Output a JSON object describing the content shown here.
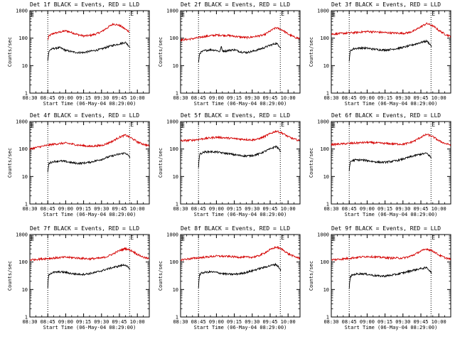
{
  "figure": {
    "background": "#ffffff",
    "events_color": "#000000",
    "lld_color": "#d40000",
    "panels_count": 9
  },
  "chart_data": [
    {
      "type": "line",
      "title": "Det 1f BLACK = Events, RED = LLD",
      "xlabel": "Start Time (06-May-04 08:29:00)",
      "ylabel": "Counts/sec",
      "x_ticks": [
        "08:30",
        "08:45",
        "09:00",
        "09:15",
        "09:30",
        "09:45",
        "10:00"
      ],
      "y_ticks": [
        "1",
        "10",
        "100",
        "1000"
      ],
      "yscale": "log",
      "ylim": [
        1,
        1000
      ],
      "xlim_minutes": [
        0,
        100
      ],
      "markers": [
        {
          "label": "E",
          "x_min": 0
        },
        {
          "label": "E",
          "x_min": 0
        },
        {
          "label": "E",
          "x_min": 83.5
        }
      ],
      "dotted_lines_min": [
        15,
        83.5
      ],
      "series": [
        {
          "x_min": [
            15,
            16,
            20,
            25,
            30,
            35,
            40,
            45,
            50,
            55,
            60,
            65,
            70,
            75,
            80,
            83.5
          ],
          "values": [
            85,
            120,
            150,
            165,
            185,
            160,
            135,
            120,
            125,
            140,
            170,
            240,
            330,
            290,
            210,
            170
          ]
        },
        {
          "x_min": [
            15,
            15.5,
            16,
            17,
            20,
            25,
            30,
            35,
            40,
            45,
            50,
            55,
            60,
            65,
            70,
            75,
            80,
            84
          ],
          "values": [
            15,
            23,
            32,
            38,
            42,
            45,
            36,
            32,
            30,
            30,
            33,
            36,
            40,
            48,
            55,
            62,
            70,
            45
          ]
        }
      ]
    },
    {
      "type": "line",
      "title": "Det 2f BLACK = Events, RED = LLD",
      "xlabel": "Start Time (06-May-04 08:29:00)",
      "ylabel": "Counts/sec",
      "x_ticks": [
        "08:30",
        "08:45",
        "09:00",
        "09:15",
        "09:30",
        "09:45",
        "10:00"
      ],
      "y_ticks": [
        "1",
        "10",
        "100",
        "1000"
      ],
      "yscale": "log",
      "ylim": [
        1,
        1000
      ],
      "xlim_minutes": [
        0,
        100
      ],
      "markers": [
        {
          "label": "E",
          "x_min": 0
        },
        {
          "label": "E",
          "x_min": 0
        },
        {
          "label": "E",
          "x_min": 83.5
        }
      ],
      "dotted_lines_min": [
        15,
        83.5
      ],
      "series": [
        {
          "x_min": [
            0,
            10,
            20,
            30,
            40,
            50,
            55,
            60,
            70,
            75,
            80,
            85,
            90,
            95,
            100
          ],
          "values": [
            85,
            95,
            115,
            130,
            125,
            110,
            105,
            110,
            130,
            180,
            240,
            200,
            140,
            110,
            95
          ]
        },
        {
          "x_min": [
            15,
            15.5,
            16,
            18,
            20,
            25,
            30,
            33,
            34,
            35,
            38,
            40,
            45,
            50,
            55,
            60,
            65,
            70,
            75,
            80,
            84
          ],
          "values": [
            12,
            20,
            28,
            32,
            35,
            38,
            36,
            32,
            50,
            35,
            34,
            36,
            38,
            32,
            30,
            33,
            38,
            45,
            55,
            65,
            45
          ]
        }
      ]
    },
    {
      "type": "line",
      "title": "Det 3f BLACK = Events, RED = LLD",
      "xlabel": "Start Time (06-May-04 08:29:00)",
      "ylabel": "Counts/sec",
      "x_ticks": [
        "08:30",
        "08:45",
        "09:00",
        "09:15",
        "09:30",
        "09:45",
        "10:00"
      ],
      "y_ticks": [
        "1",
        "10",
        "100",
        "1000"
      ],
      "yscale": "log",
      "ylim": [
        1,
        1000
      ],
      "xlim_minutes": [
        0,
        100
      ],
      "markers": [
        {
          "label": "E",
          "x_min": 0
        },
        {
          "label": "E",
          "x_min": 0
        },
        {
          "label": "E",
          "x_min": 83.5
        }
      ],
      "dotted_lines_min": [
        15,
        83.5
      ],
      "series": [
        {
          "x_min": [
            0,
            10,
            20,
            30,
            40,
            50,
            60,
            65,
            70,
            75,
            80,
            85,
            90,
            95,
            100
          ],
          "values": [
            140,
            150,
            160,
            175,
            165,
            155,
            150,
            160,
            190,
            260,
            340,
            280,
            190,
            140,
            115
          ]
        },
        {
          "x_min": [
            15,
            15.5,
            16,
            18,
            20,
            25,
            30,
            35,
            40,
            45,
            50,
            55,
            60,
            65,
            70,
            75,
            80,
            84
          ],
          "values": [
            15,
            25,
            35,
            40,
            42,
            44,
            43,
            40,
            38,
            37,
            39,
            42,
            46,
            52,
            60,
            70,
            78,
            50
          ]
        }
      ]
    },
    {
      "type": "line",
      "title": "Det 4f BLACK = Events, RED = LLD",
      "xlabel": "Start Time (06-May-04 08:29:00)",
      "ylabel": "Counts/sec",
      "x_ticks": [
        "08:30",
        "08:45",
        "09:00",
        "09:15",
        "09:30",
        "09:45",
        "10:00"
      ],
      "y_ticks": [
        "1",
        "10",
        "100",
        "1000"
      ],
      "yscale": "log",
      "ylim": [
        1,
        1000
      ],
      "xlim_minutes": [
        0,
        100
      ],
      "markers": [
        {
          "label": "E",
          "x_min": 0
        },
        {
          "label": "E",
          "x_min": 0
        },
        {
          "label": "E",
          "x_min": 83.5
        }
      ],
      "dotted_lines_min": [
        15,
        83.5
      ],
      "series": [
        {
          "x_min": [
            0,
            10,
            20,
            30,
            40,
            50,
            60,
            65,
            70,
            75,
            80,
            85,
            90,
            95,
            100
          ],
          "values": [
            100,
            125,
            150,
            165,
            140,
            125,
            135,
            160,
            200,
            270,
            320,
            250,
            180,
            150,
            130
          ]
        },
        {
          "x_min": [
            15,
            15.5,
            16,
            18,
            20,
            25,
            30,
            35,
            40,
            45,
            50,
            55,
            60,
            65,
            70,
            75,
            80,
            84
          ],
          "values": [
            14,
            22,
            30,
            33,
            35,
            37,
            35,
            32,
            30,
            31,
            33,
            37,
            42,
            50,
            58,
            65,
            72,
            48
          ]
        }
      ]
    },
    {
      "type": "line",
      "title": "Det 5f BLACK = Events, RED = LLD",
      "xlabel": "Start Time (06-May-04 08:29:00)",
      "ylabel": "Counts/sec",
      "x_ticks": [
        "08:30",
        "08:45",
        "09:00",
        "09:15",
        "09:30",
        "09:45",
        "10:00"
      ],
      "y_ticks": [
        "1",
        "10",
        "100",
        "1000"
      ],
      "yscale": "log",
      "ylim": [
        1,
        1000
      ],
      "xlim_minutes": [
        0,
        100
      ],
      "markers": [
        {
          "label": "E",
          "x_min": 0
        },
        {
          "label": "E",
          "x_min": 0
        },
        {
          "label": "E",
          "x_min": 83.5
        }
      ],
      "dotted_lines_min": [
        15,
        83.5
      ],
      "series": [
        {
          "x_min": [
            0,
            10,
            20,
            30,
            40,
            50,
            60,
            65,
            70,
            75,
            80,
            85,
            90,
            95,
            100
          ],
          "values": [
            200,
            210,
            240,
            270,
            250,
            230,
            215,
            230,
            280,
            360,
            450,
            380,
            280,
            230,
            200
          ]
        },
        {
          "x_min": [
            15,
            15.5,
            16,
            18,
            20,
            25,
            30,
            35,
            40,
            45,
            50,
            55,
            60,
            65,
            70,
            75,
            80,
            84
          ],
          "values": [
            22,
            45,
            65,
            72,
            78,
            80,
            78,
            72,
            68,
            62,
            58,
            56,
            58,
            65,
            80,
            100,
            125,
            80
          ]
        }
      ]
    },
    {
      "type": "line",
      "title": "Det 6f BLACK = Events, RED = LLD",
      "xlabel": "Start Time (06-May-04 08:29:00)",
      "ylabel": "Counts/sec",
      "x_ticks": [
        "08:30",
        "08:45",
        "09:00",
        "09:15",
        "09:30",
        "09:45",
        "10:00"
      ],
      "y_ticks": [
        "1",
        "10",
        "100",
        "1000"
      ],
      "yscale": "log",
      "ylim": [
        1,
        1000
      ],
      "xlim_minutes": [
        0,
        100
      ],
      "markers": [
        {
          "label": "E",
          "x_min": 0
        },
        {
          "label": "E",
          "x_min": 0
        },
        {
          "label": "E",
          "x_min": 83.5
        }
      ],
      "dotted_lines_min": [
        15,
        83.5
      ],
      "series": [
        {
          "x_min": [
            0,
            10,
            20,
            30,
            40,
            50,
            60,
            65,
            70,
            75,
            80,
            85,
            90,
            95,
            100
          ],
          "values": [
            145,
            155,
            165,
            175,
            165,
            155,
            150,
            165,
            200,
            270,
            340,
            280,
            200,
            160,
            140
          ]
        },
        {
          "x_min": [
            15,
            15.5,
            16,
            18,
            20,
            25,
            30,
            35,
            40,
            45,
            50,
            55,
            60,
            65,
            70,
            75,
            80,
            84
          ],
          "values": [
            15,
            25,
            35,
            38,
            40,
            40,
            38,
            35,
            33,
            33,
            35,
            38,
            43,
            50,
            58,
            65,
            70,
            45
          ]
        }
      ]
    },
    {
      "type": "line",
      "title": "Det 7f BLACK = Events, RED = LLD",
      "xlabel": "Start Time (06-May-04 08:29:00)",
      "ylabel": "Counts/sec",
      "x_ticks": [
        "08:30",
        "08:45",
        "09:00",
        "09:15",
        "09:30",
        "09:45",
        "10:00"
      ],
      "y_ticks": [
        "1",
        "10",
        "100",
        "1000"
      ],
      "yscale": "log",
      "ylim": [
        1,
        1000
      ],
      "xlim_minutes": [
        0,
        100
      ],
      "markers": [
        {
          "label": "E",
          "x_min": 0
        },
        {
          "label": "E",
          "x_min": 0
        },
        {
          "label": "E",
          "x_min": 83.5
        }
      ],
      "dotted_lines_min": [
        15,
        83.5
      ],
      "series": [
        {
          "x_min": [
            0,
            10,
            20,
            30,
            40,
            50,
            60,
            65,
            70,
            75,
            80,
            85,
            90,
            95,
            100
          ],
          "values": [
            120,
            130,
            140,
            150,
            140,
            130,
            140,
            160,
            200,
            260,
            310,
            260,
            190,
            150,
            130
          ]
        },
        {
          "x_min": [
            15,
            15.5,
            16,
            18,
            20,
            25,
            30,
            35,
            40,
            45,
            50,
            55,
            60,
            65,
            70,
            75,
            80,
            84
          ],
          "values": [
            12,
            25,
            36,
            40,
            42,
            44,
            42,
            38,
            36,
            36,
            38,
            42,
            48,
            56,
            64,
            72,
            80,
            50
          ]
        }
      ]
    },
    {
      "type": "line",
      "title": "Det 8f BLACK = Events, RED = LLD",
      "xlabel": "Start Time (06-May-04 08:29:00)",
      "ylabel": "Counts/sec",
      "x_ticks": [
        "08:30",
        "08:45",
        "09:00",
        "09:15",
        "09:30",
        "09:45",
        "10:00"
      ],
      "y_ticks": [
        "1",
        "10",
        "100",
        "1000"
      ],
      "yscale": "log",
      "ylim": [
        1,
        1000
      ],
      "xlim_minutes": [
        0,
        100
      ],
      "markers": [
        {
          "label": "E",
          "x_min": 0
        },
        {
          "label": "E",
          "x_min": 0
        },
        {
          "label": "E",
          "x_min": 83.5
        }
      ],
      "dotted_lines_min": [
        15,
        83.5
      ],
      "series": [
        {
          "x_min": [
            0,
            10,
            20,
            30,
            40,
            50,
            60,
            65,
            70,
            75,
            80,
            85,
            90,
            95,
            100
          ],
          "values": [
            120,
            135,
            150,
            165,
            160,
            150,
            150,
            165,
            210,
            280,
            350,
            290,
            200,
            160,
            135
          ]
        },
        {
          "x_min": [
            15,
            15.5,
            16,
            18,
            20,
            25,
            30,
            35,
            40,
            45,
            50,
            55,
            60,
            65,
            70,
            75,
            80,
            84
          ],
          "values": [
            12,
            25,
            35,
            40,
            42,
            44,
            42,
            38,
            36,
            36,
            38,
            42,
            48,
            56,
            64,
            74,
            82,
            50
          ]
        }
      ]
    },
    {
      "type": "line",
      "title": "Det 9f BLACK = Events, RED = LLD",
      "xlabel": "Start Time (06-May-04 08:29:00)",
      "ylabel": "Counts/sec",
      "x_ticks": [
        "08:30",
        "08:45",
        "09:00",
        "09:15",
        "09:30",
        "09:45",
        "10:00"
      ],
      "y_ticks": [
        "1",
        "10",
        "100",
        "1000"
      ],
      "yscale": "log",
      "ylim": [
        1,
        1000
      ],
      "xlim_minutes": [
        0,
        100
      ],
      "markers": [
        {
          "label": "E",
          "x_min": 0
        },
        {
          "label": "E",
          "x_min": 0
        },
        {
          "label": "E",
          "x_min": 83.5
        }
      ],
      "dotted_lines_min": [
        15,
        83.5
      ],
      "series": [
        {
          "x_min": [
            0,
            10,
            20,
            30,
            40,
            50,
            60,
            65,
            70,
            75,
            80,
            85,
            90,
            95,
            100
          ],
          "values": [
            120,
            130,
            145,
            160,
            150,
            140,
            140,
            155,
            190,
            250,
            300,
            250,
            180,
            145,
            125
          ]
        },
        {
          "x_min": [
            15,
            15.5,
            16,
            18,
            20,
            25,
            30,
            35,
            40,
            45,
            50,
            55,
            60,
            65,
            70,
            75,
            80,
            84
          ],
          "values": [
            10,
            20,
            30,
            34,
            36,
            38,
            36,
            33,
            31,
            31,
            33,
            36,
            40,
            46,
            52,
            58,
            62,
            40
          ]
        }
      ]
    }
  ]
}
